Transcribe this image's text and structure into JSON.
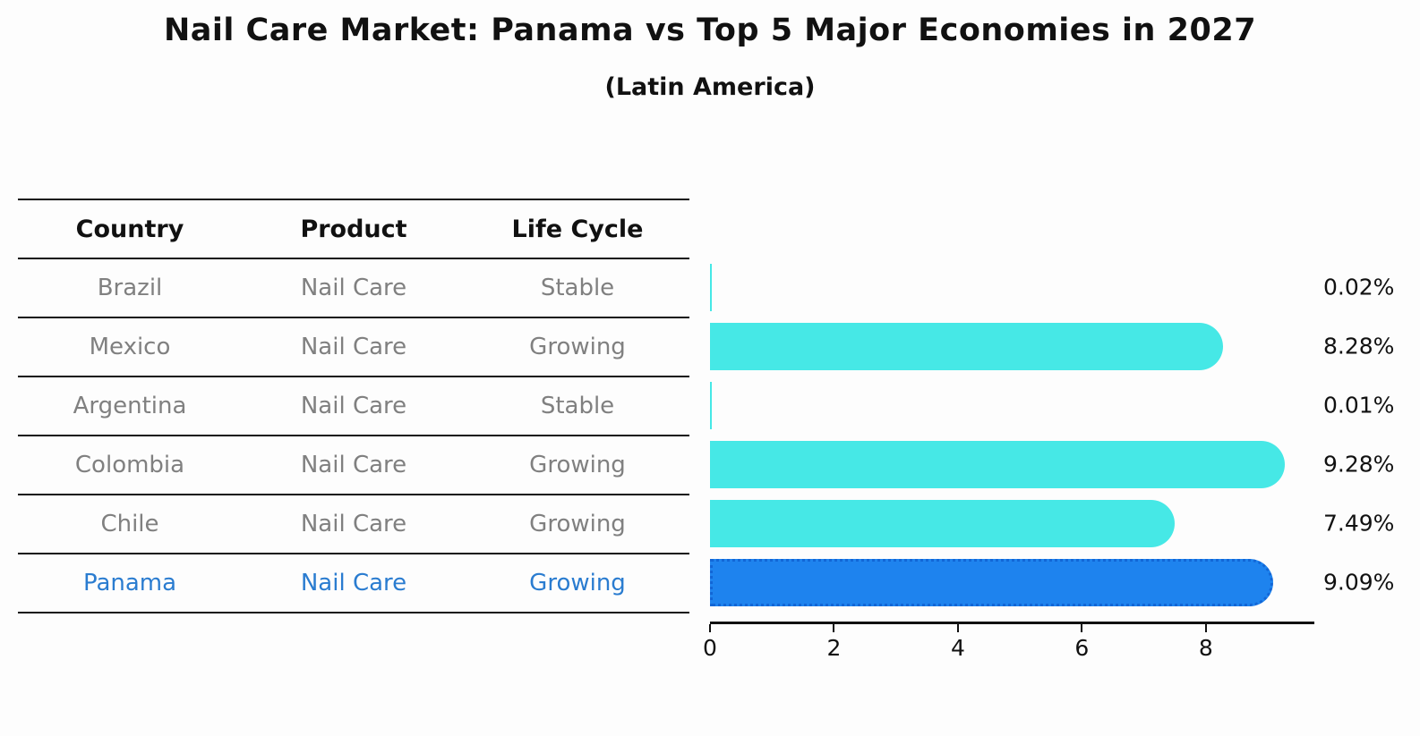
{
  "title": "Nail Care Market: Panama vs Top 5 Major Economies in 2027",
  "subtitle": "(Latin America)",
  "table": {
    "headers": [
      "Country",
      "Product",
      "Life Cycle"
    ],
    "rows": [
      {
        "country": "Brazil",
        "product": "Nail Care",
        "life_cycle": "Stable"
      },
      {
        "country": "Mexico",
        "product": "Nail Care",
        "life_cycle": "Growing"
      },
      {
        "country": "Argentina",
        "product": "Nail Care",
        "life_cycle": "Stable"
      },
      {
        "country": "Colombia",
        "product": "Nail Care",
        "life_cycle": "Growing"
      },
      {
        "country": "Chile",
        "product": "Nail Care",
        "life_cycle": "Growing"
      },
      {
        "country": "Panama",
        "product": "Nail Care",
        "life_cycle": "Growing"
      }
    ]
  },
  "chart_data": {
    "type": "bar",
    "orientation": "horizontal",
    "title": "Nail Care Market: Panama vs Top 5 Major Economies in 2027",
    "subtitle": "(Latin America)",
    "categories": [
      "Brazil",
      "Mexico",
      "Argentina",
      "Colombia",
      "Chile",
      "Panama"
    ],
    "values": [
      0.02,
      8.28,
      0.01,
      9.28,
      7.49,
      9.09
    ],
    "value_labels": [
      "0.02%",
      "8.28%",
      "0.01%",
      "9.28%",
      "7.49%",
      "9.09%"
    ],
    "x_ticks": [
      "0",
      "2",
      "4",
      "6",
      "8"
    ],
    "x_tick_values": [
      0,
      2,
      4,
      6,
      8
    ],
    "xlim": [
      0,
      9.75
    ],
    "grid": false,
    "legend": false,
    "highlight_index": 5,
    "colors": {
      "bar": "#46e8e6",
      "highlight_bar": "#1e83ee",
      "highlight_border": "#1266d6",
      "text": "#111111",
      "muted_text": "#808080",
      "highlight_text": "#2a7cd0"
    }
  }
}
